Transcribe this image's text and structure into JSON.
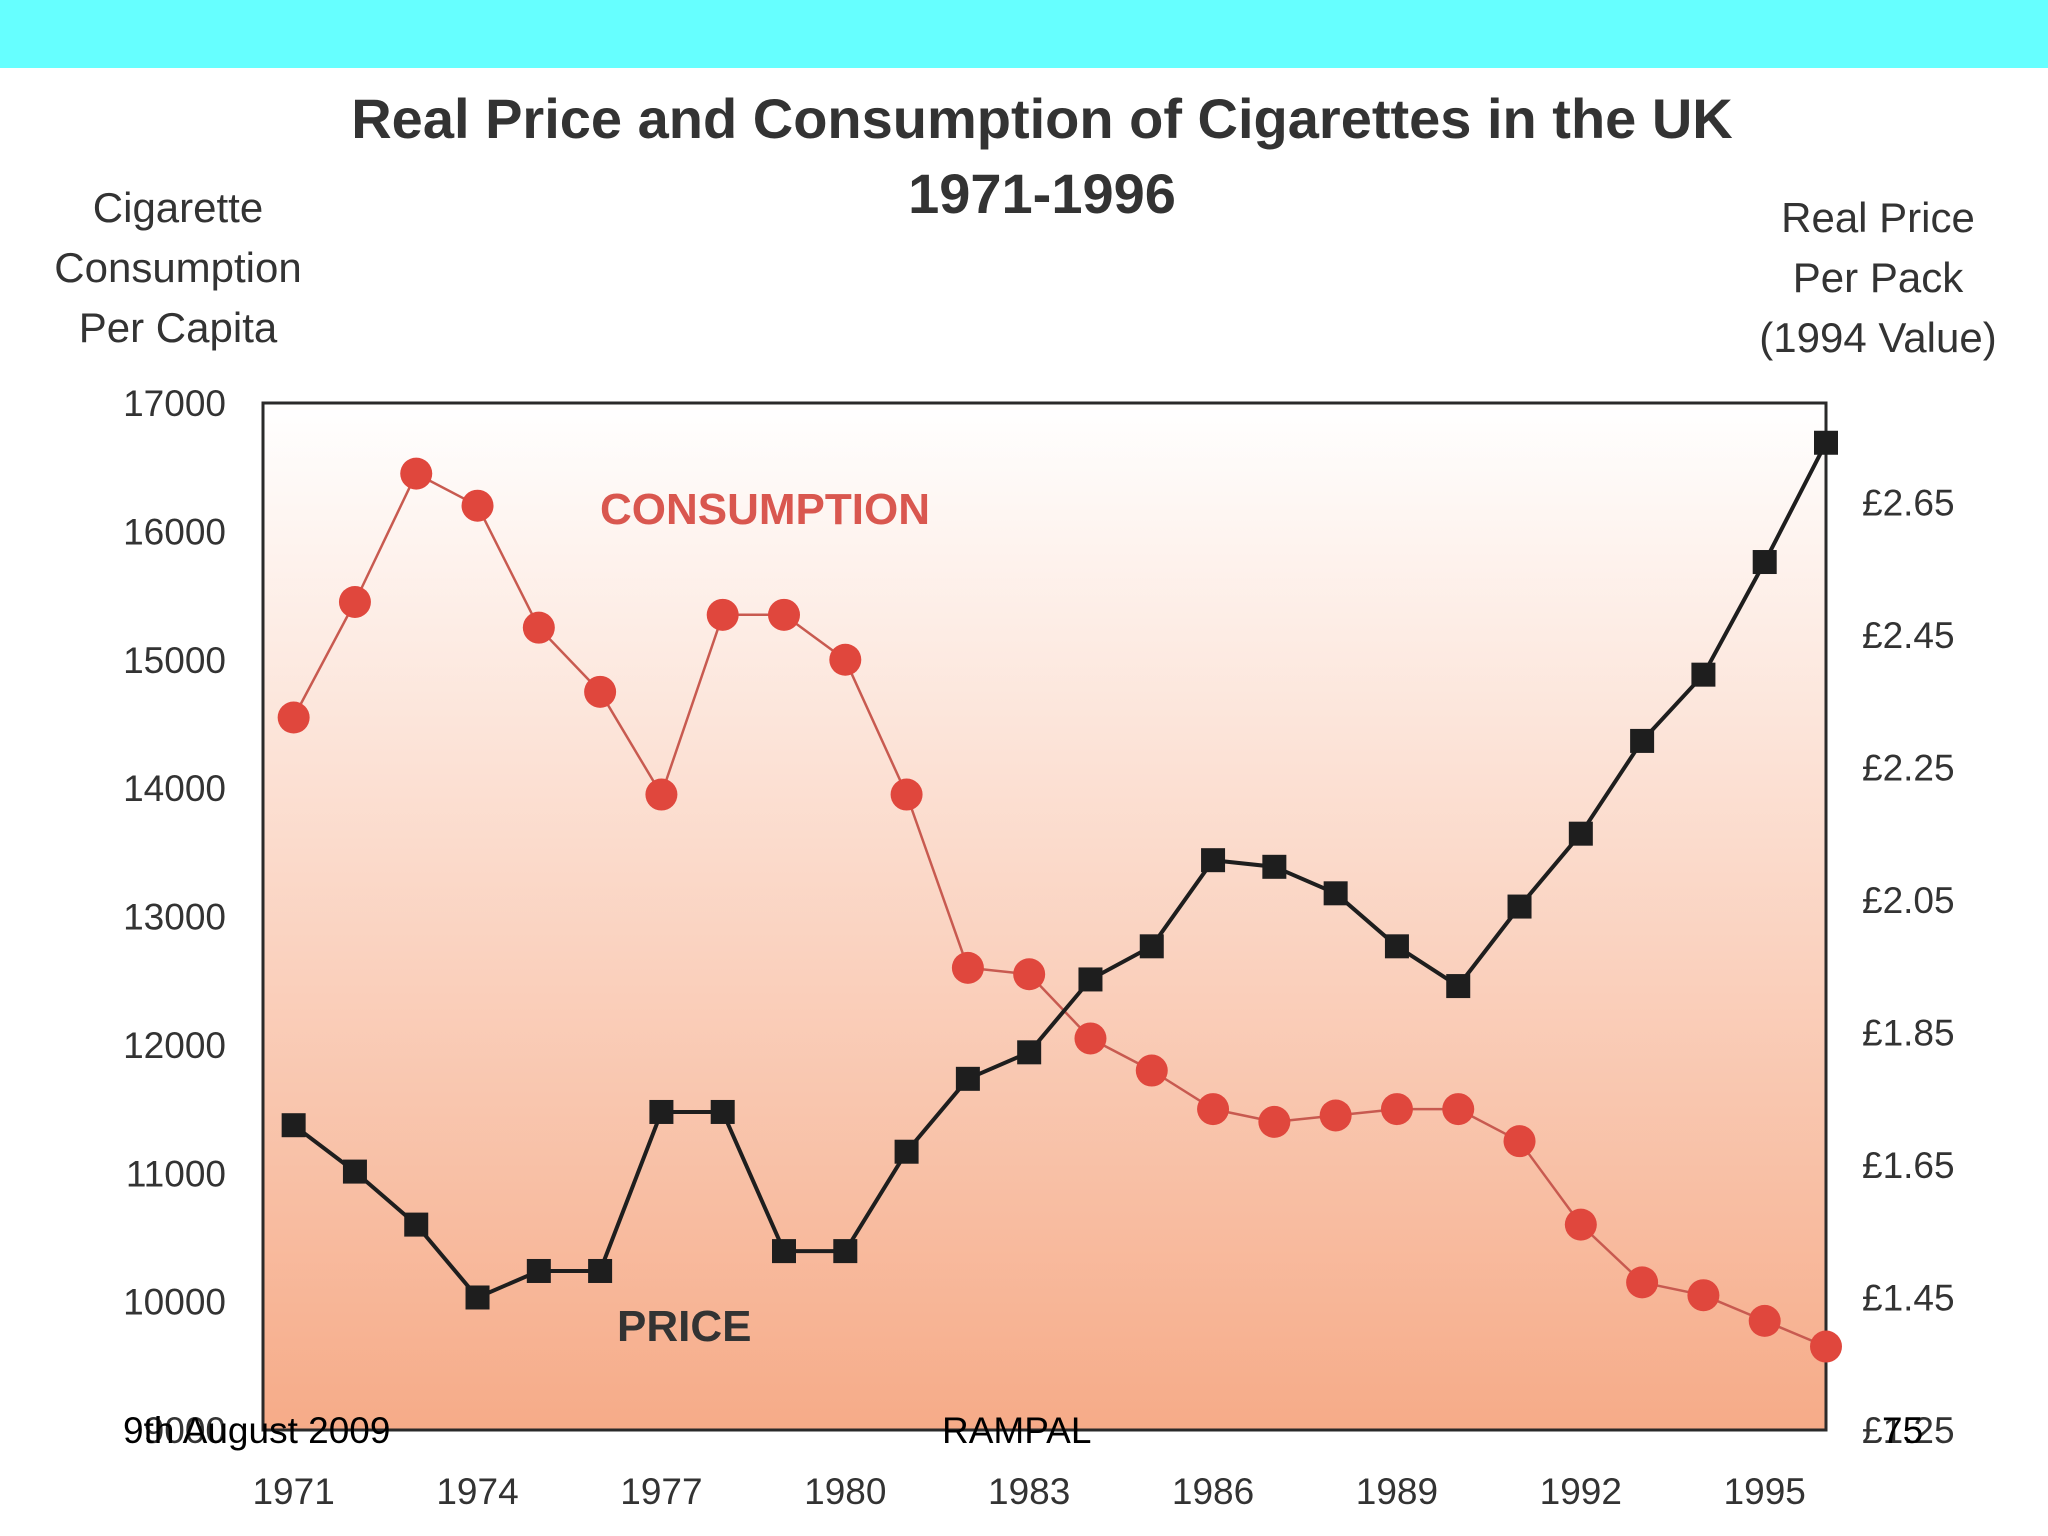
{
  "colors": {
    "top_bar": "#66ffff",
    "consumption": "#e0473d",
    "consumption_line": "#c85a50",
    "price": "#1e1e1e",
    "text": "#333333",
    "series_label_consumption": "#d9574f",
    "bg_top": "#ffffff",
    "bg_bottom": "#f6ab88"
  },
  "chart_data": {
    "type": "line",
    "title": "Real Price and Consumption of Cigarettes in the UK",
    "subtitle": "1971-1996",
    "ylabel_left": [
      "Cigarette",
      "Consumption",
      "Per Capita"
    ],
    "ylabel_right": [
      "Real Price",
      "Per Pack",
      "(1994 Value)"
    ],
    "y_left_ticks": [
      "17000",
      "16000",
      "15000",
      "14000",
      "13000",
      "12000",
      "11000",
      "10000",
      "9000"
    ],
    "y_left_range": [
      9000,
      17000
    ],
    "y_right_ticks": [
      "£2.65",
      "£2.45",
      "£2.25",
      "£2.05",
      "£1.85",
      "£1.65",
      "£1.45",
      "£1.25"
    ],
    "y_right_range": [
      1.25,
      2.8
    ],
    "x_range": [
      1970.5,
      1996
    ],
    "x_ticks": [
      "1971",
      "1974",
      "1977",
      "1980",
      "1983",
      "1986",
      "1989",
      "1992",
      "1995"
    ],
    "x": [
      1971,
      1972,
      1973,
      1974,
      1975,
      1976,
      1977,
      1978,
      1979,
      1980,
      1981,
      1982,
      1983,
      1984,
      1985,
      1986,
      1987,
      1988,
      1989,
      1990,
      1991,
      1992,
      1993,
      1994,
      1995,
      1996
    ],
    "series": [
      {
        "name": "CONSUMPTION",
        "axis": "left",
        "values": [
          14550,
          15450,
          16450,
          16200,
          15250,
          14750,
          13950,
          15350,
          15350,
          15000,
          13950,
          12600,
          12550,
          12050,
          11800,
          11500,
          11400,
          11450,
          11500,
          11500,
          11250,
          10600,
          10150,
          10050,
          9850,
          9650
        ]
      },
      {
        "name": "PRICE",
        "axis": "right",
        "values": [
          1.71,
          1.64,
          1.56,
          1.45,
          1.49,
          1.49,
          1.73,
          1.73,
          1.52,
          1.52,
          1.67,
          1.78,
          1.82,
          1.93,
          1.98,
          2.11,
          2.1,
          2.06,
          1.98,
          1.92,
          2.04,
          2.15,
          2.29,
          2.39,
          2.56,
          2.74
        ]
      }
    ]
  },
  "footer": {
    "date": "9th August 2009",
    "author": "RAMPAL",
    "page": "75"
  }
}
